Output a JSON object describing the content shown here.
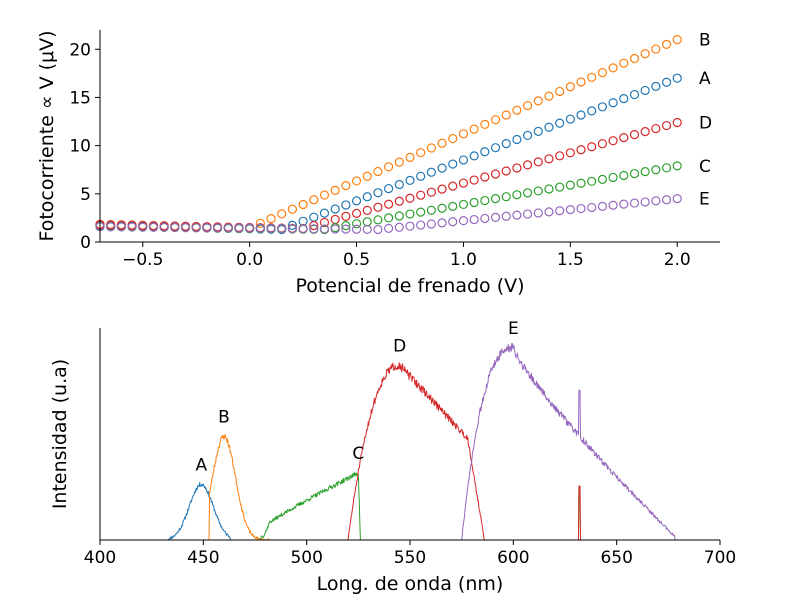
{
  "chart_data": [
    {
      "type": "scatter",
      "xlabel": "Potencial de frenado (V)",
      "ylabel": "Fotocorriente ∝ V (μV)",
      "xlim": [
        -0.7,
        2.2
      ],
      "ylim": [
        0,
        22
      ],
      "xticks": [
        -0.5,
        0.0,
        0.5,
        1.0,
        1.5,
        2.0
      ],
      "xtick_labels": [
        "−0.5",
        "0.0",
        "0.5",
        "1.0",
        "1.5",
        "2.0"
      ],
      "yticks": [
        0,
        5,
        10,
        15,
        20
      ],
      "ytick_labels": [
        "0",
        "5",
        "10",
        "15",
        "20"
      ],
      "x_start": -0.7,
      "x_end": 2.0,
      "x_step": 0.05,
      "marker": "open-circle",
      "grid": false,
      "series": [
        {
          "name": "B",
          "color": "#ff7f0e",
          "y_at_x_start": 1.85,
          "threshold_x": 0.0,
          "y_at_x_end": 21.0
        },
        {
          "name": "A",
          "color": "#1f77b4",
          "y_at_x_start": 1.7,
          "threshold_x": 0.15,
          "y_at_x_end": 17.0
        },
        {
          "name": "D",
          "color": "#d62728",
          "y_at_x_start": 1.8,
          "threshold_x": 0.25,
          "y_at_x_end": 12.4
        },
        {
          "name": "C",
          "color": "#2ca02c",
          "y_at_x_start": 1.6,
          "threshold_x": 0.35,
          "y_at_x_end": 7.9
        },
        {
          "name": "E",
          "color": "#9467bd",
          "y_at_x_start": 1.6,
          "threshold_x": 0.6,
          "y_at_x_end": 4.5
        }
      ]
    },
    {
      "type": "line",
      "xlabel": "Long. de onda (nm)",
      "ylabel": "Intensidad (u.a)",
      "xlim": [
        400,
        700
      ],
      "xticks": [
        400,
        450,
        500,
        550,
        600,
        650,
        700
      ],
      "xtick_labels": [
        "400",
        "450",
        "500",
        "550",
        "600",
        "650",
        "700"
      ],
      "y_ticks_shown": false,
      "grid": false,
      "series": [
        {
          "name": "A",
          "color": "#1f77b4",
          "peak_nm": 449,
          "peak_intensity": 0.29,
          "range_nm": [
            433,
            463
          ]
        },
        {
          "name": "B",
          "color": "#ff7f0e",
          "peak_nm": 460,
          "peak_intensity": 0.54,
          "range_nm": [
            453,
            482
          ]
        },
        {
          "name": "C",
          "color": "#2ca02c",
          "peak_nm": 525,
          "peak_intensity": 0.35,
          "range_nm": [
            478,
            526
          ],
          "spike_nm": 632,
          "spike_intensity": 0.28
        },
        {
          "name": "D",
          "color": "#d62728",
          "peak_nm": 545,
          "peak_intensity": 0.91,
          "range_nm": [
            520,
            586
          ],
          "spike_nm": 632,
          "spike_intensity": 0.28
        },
        {
          "name": "E",
          "color": "#9467bd",
          "peak_nm": 600,
          "peak_intensity": 1.0,
          "range_nm": [
            575,
            678
          ],
          "spike_nm": 632,
          "spike_intensity": 0.78
        }
      ]
    }
  ]
}
